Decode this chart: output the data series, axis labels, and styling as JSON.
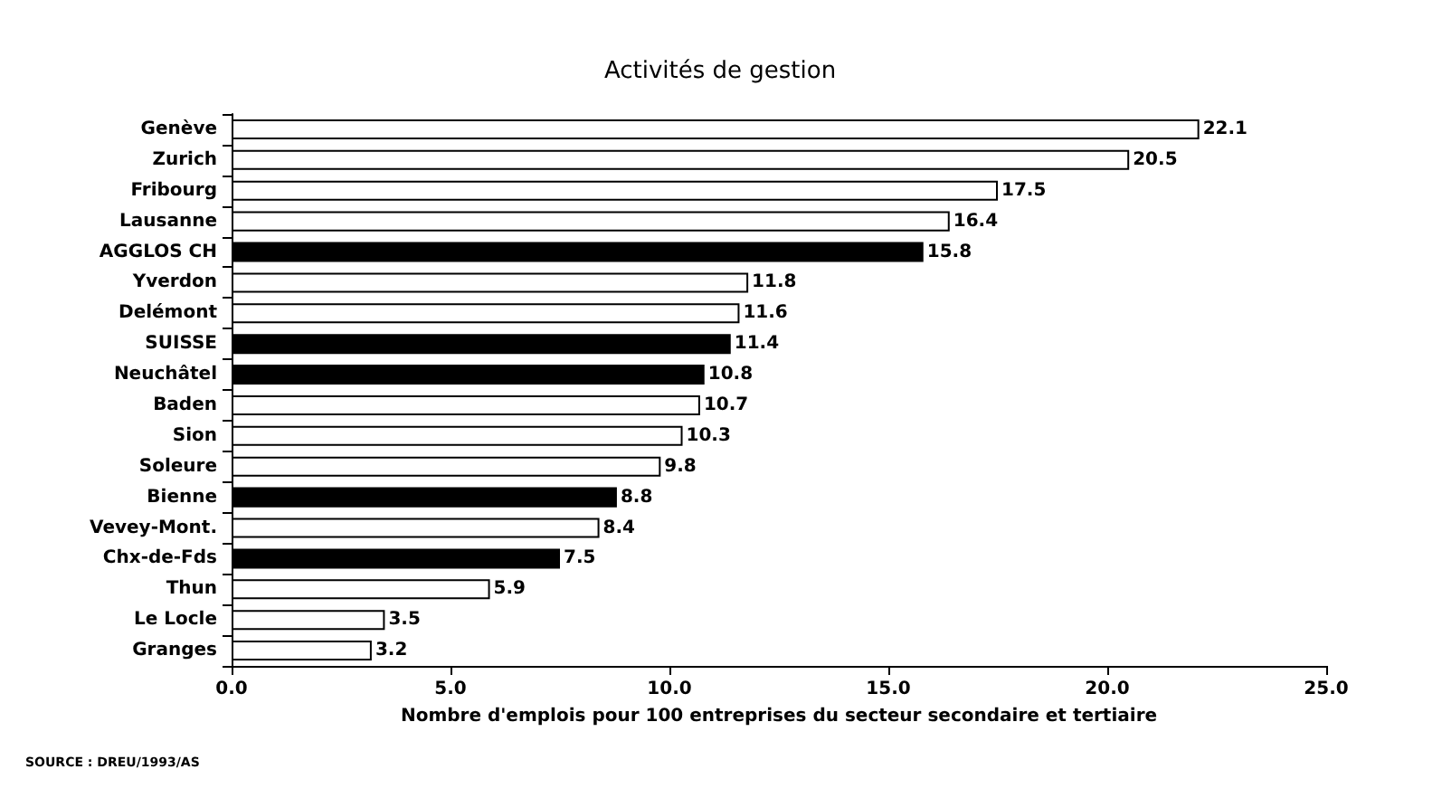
{
  "chart_data": {
    "type": "bar",
    "orientation": "horizontal",
    "title": "Activités de gestion",
    "xlabel": "Nombre d'emplois pour 100 entreprises du secteur secondaire et tertiaire",
    "categories": [
      "Genève",
      "Zurich",
      "Fribourg",
      "Lausanne",
      "AGGLOS CH",
      "Yverdon",
      "Delémont",
      "SUISSE",
      "Neuchâtel",
      "Baden",
      "Sion",
      "Soleure",
      "Bienne",
      "Vevey-Mont.",
      "Chx-de-Fds",
      "Thun",
      "Le Locle",
      "Granges"
    ],
    "values": [
      22.1,
      20.5,
      17.5,
      16.4,
      15.8,
      11.8,
      11.6,
      11.4,
      10.8,
      10.7,
      10.3,
      9.8,
      8.8,
      8.4,
      7.5,
      5.9,
      3.5,
      3.2
    ],
    "colors": [
      "#ffffff",
      "#ffffff",
      "#ffffff",
      "#ffffff",
      "#000000",
      "#ffffff",
      "#ffffff",
      "#000000",
      "#000000",
      "#ffffff",
      "#ffffff",
      "#ffffff",
      "#000000",
      "#ffffff",
      "#000000",
      "#ffffff",
      "#ffffff",
      "#ffffff"
    ],
    "data_labels": true,
    "xlim": [
      0,
      25
    ],
    "xticks": [
      {
        "value": 0,
        "label": "0.0"
      },
      {
        "value": 5,
        "label": "5.0"
      },
      {
        "value": 10,
        "label": "10.0"
      },
      {
        "value": 15,
        "label": "15.0"
      },
      {
        "value": 20,
        "label": "20.0"
      },
      {
        "value": 25,
        "label": "25.0"
      }
    ],
    "annotations": [
      "SOURCE : DREU/1993/AS"
    ]
  }
}
